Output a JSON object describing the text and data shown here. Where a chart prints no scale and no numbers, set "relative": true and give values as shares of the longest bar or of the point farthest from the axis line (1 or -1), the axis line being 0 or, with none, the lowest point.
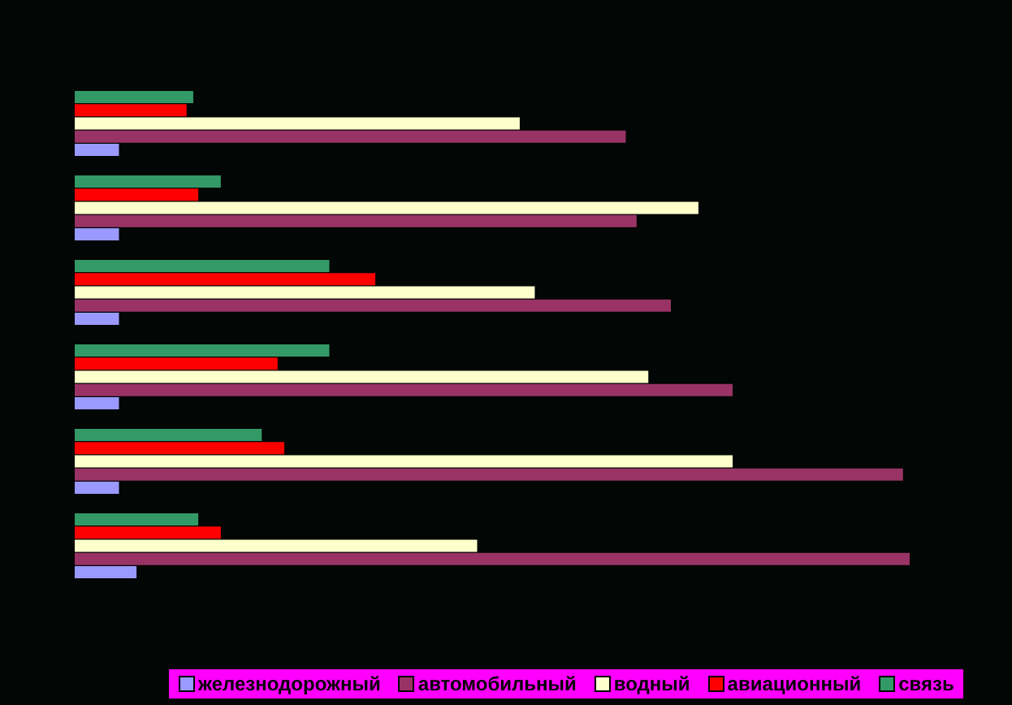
{
  "chart_data": {
    "type": "bar",
    "orientation": "horizontal",
    "relative": true,
    "categories": [
      null,
      null,
      null,
      null,
      null,
      null
    ],
    "legend": "bottom",
    "series": [
      {
        "name": "железнодорожный",
        "color": "#9999ff",
        "values": [
          0.053,
          0.053,
          0.053,
          0.053,
          0.053,
          0.074
        ]
      },
      {
        "name": "автомобильный",
        "color": "#993366",
        "values": [
          0.66,
          0.673,
          0.714,
          0.788,
          0.992,
          1
        ]
      },
      {
        "name": "водный",
        "color": "#ffffcc",
        "values": [
          0.533,
          0.747,
          0.551,
          0.687,
          0.788,
          0.482
        ]
      },
      {
        "name": "авиационный",
        "color": "#ff0000",
        "values": [
          0.134,
          0.148,
          0.36,
          0.243,
          0.251,
          0.175
        ]
      },
      {
        "name": "связь",
        "color": "#339966",
        "values": [
          0.142,
          0.175,
          0.305,
          0.305,
          0.224,
          0.148
        ]
      }
    ]
  }
}
